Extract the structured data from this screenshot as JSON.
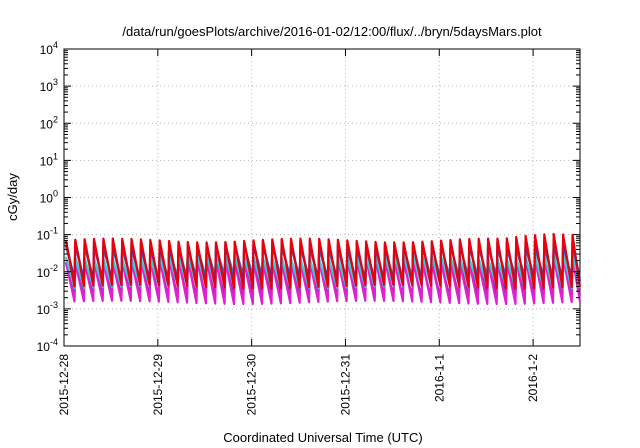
{
  "chart_data": {
    "type": "line",
    "title": "/data/run/goesPlots/archive/2016-01-02/12:00/flux/../bryn/5daysMars.plot",
    "xlabel": "Coordinated Universal Time (UTC)",
    "ylabel": "cGy/day",
    "yscale": "log",
    "ylim": [
      0.0001,
      10000
    ],
    "xlim": [
      "2015-12-28 00:00",
      "2016-01-02 12:00"
    ],
    "grid": true,
    "y_ticks": [
      {
        "base": "10",
        "exp": "-4"
      },
      {
        "base": "10",
        "exp": "-3"
      },
      {
        "base": "10",
        "exp": "-2"
      },
      {
        "base": "10",
        "exp": "-1"
      },
      {
        "base": "10",
        "exp": "0"
      },
      {
        "base": "10",
        "exp": "1"
      },
      {
        "base": "10",
        "exp": "2"
      },
      {
        "base": "10",
        "exp": "3"
      },
      {
        "base": "10",
        "exp": "4"
      }
    ],
    "x_ticks": [
      "2015-12-28",
      "2015-12-29",
      "2015-12-30",
      "2015-12-31",
      "2016-1-1",
      "2016-1-2"
    ],
    "sawtooth_period_hours": 2.4,
    "series": [
      {
        "color": "#e8000b",
        "peak": 0.07,
        "trough": 0.004,
        "late_peak": 0.11
      },
      {
        "color": "#1f3fe0",
        "peak": 0.06,
        "trough": 0.005,
        "late_peak": 0.08
      },
      {
        "color": "#2a80c8",
        "peak": 0.045,
        "trough": 0.007,
        "late_peak": 0.05
      },
      {
        "color": "#2fd0d0",
        "peak": 0.025,
        "trough": 0.004,
        "late_peak": 0.028
      },
      {
        "color": "#e020d0",
        "peak": 0.02,
        "trough": 0.0015,
        "late_peak": 0.022
      },
      {
        "color": "#9030a0",
        "peak": 0.02,
        "trough": 0.0022,
        "late_peak": 0.022
      }
    ]
  }
}
